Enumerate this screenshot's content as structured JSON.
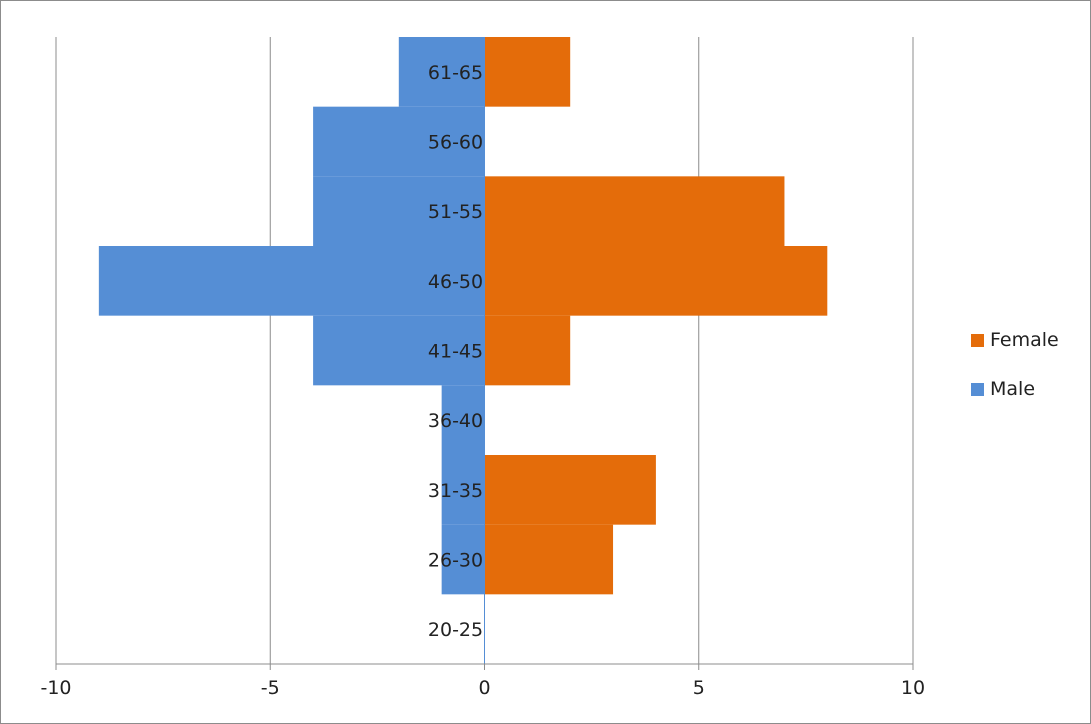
{
  "chart_data": {
    "type": "bar",
    "orientation": "horizontal",
    "stacked": true,
    "categories": [
      "20-25",
      "26-30",
      "31-35",
      "36-40",
      "41-45",
      "46-50",
      "51-55",
      "56-60",
      "61-65"
    ],
    "series": [
      {
        "name": "Male",
        "color": "#558ed5",
        "values": [
          0,
          -1,
          -1,
          -1,
          -4,
          -9,
          -4,
          -4,
          -2
        ]
      },
      {
        "name": "Female",
        "color": "#e46c0a",
        "values": [
          0,
          3,
          4,
          0,
          2,
          8,
          7,
          0,
          2
        ]
      }
    ],
    "xlim": [
      -10,
      10
    ],
    "x_ticks": [
      -10,
      -5,
      0,
      5,
      10
    ],
    "x_tick_labels": [
      "-10",
      "-5",
      "0",
      "5",
      "10"
    ],
    "grid": "vertical",
    "legend": {
      "position": "right",
      "entries": [
        "Female",
        "Male"
      ]
    },
    "title": "",
    "xlabel": "",
    "ylabel": ""
  }
}
